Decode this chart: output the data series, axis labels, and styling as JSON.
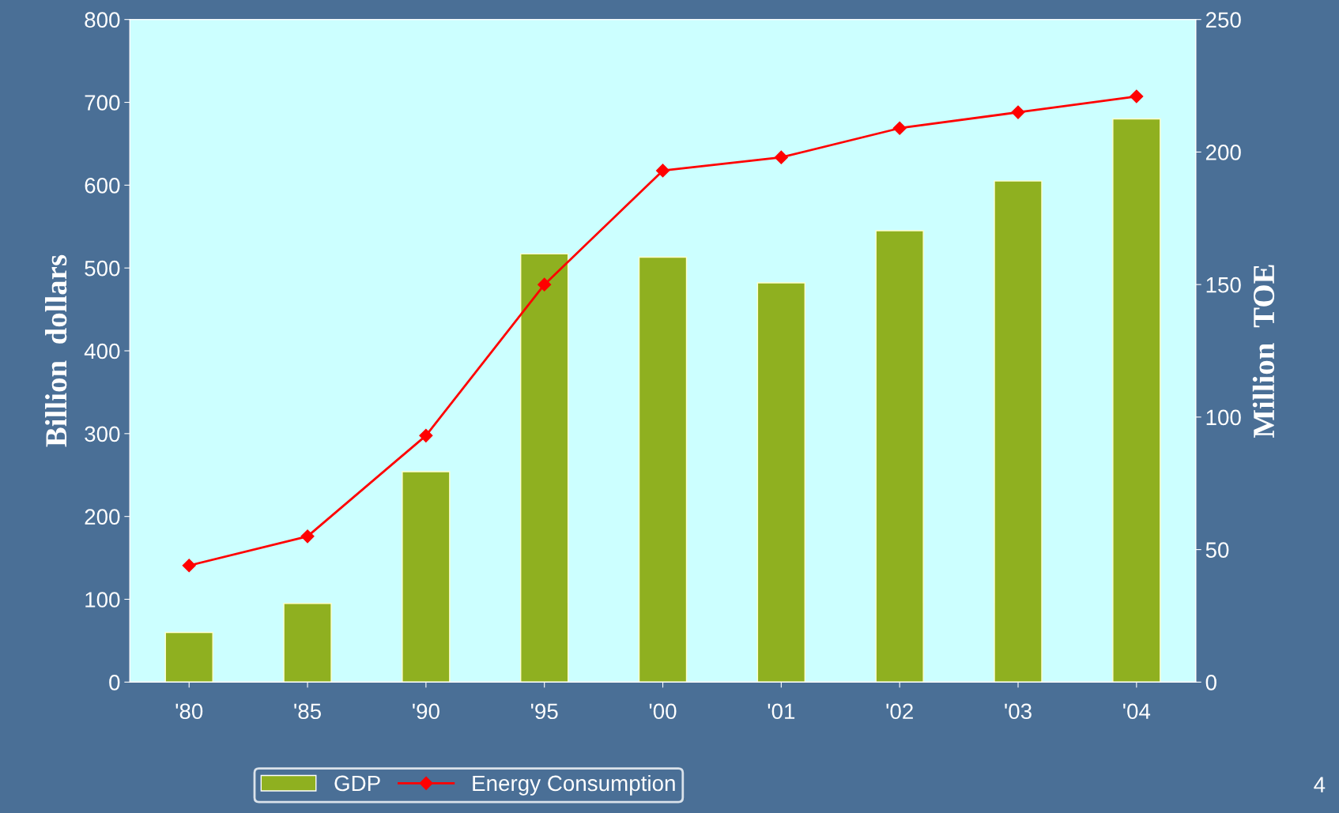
{
  "chart_data": {
    "type": "bar",
    "categories": [
      "'80",
      "'85",
      "'90",
      "'95",
      "'00",
      "'01",
      "'02",
      "'03",
      "'04"
    ],
    "series": [
      {
        "name": "GDP",
        "color": "#8fb020",
        "values": [
          60,
          95,
          254,
          517,
          513,
          482,
          545,
          605,
          680
        ]
      },
      {
        "name": "Energy Consumption",
        "type": "line",
        "axis": "y2",
        "color": "#ff0000",
        "marker": "diamond",
        "values": [
          44,
          55,
          93,
          150,
          193,
          198,
          209,
          215,
          221
        ]
      }
    ],
    "ylabel": "Billion  dollars",
    "y2label": "Million  TOE",
    "ylim": [
      0,
      800
    ],
    "yticks": [
      0,
      100,
      200,
      300,
      400,
      500,
      600,
      700,
      800
    ],
    "y2lim": [
      0,
      250
    ],
    "y2ticks": [
      0,
      50,
      100,
      150,
      200,
      250
    ],
    "grid": false,
    "legend": "bottom",
    "annotations": [
      "4"
    ]
  }
}
